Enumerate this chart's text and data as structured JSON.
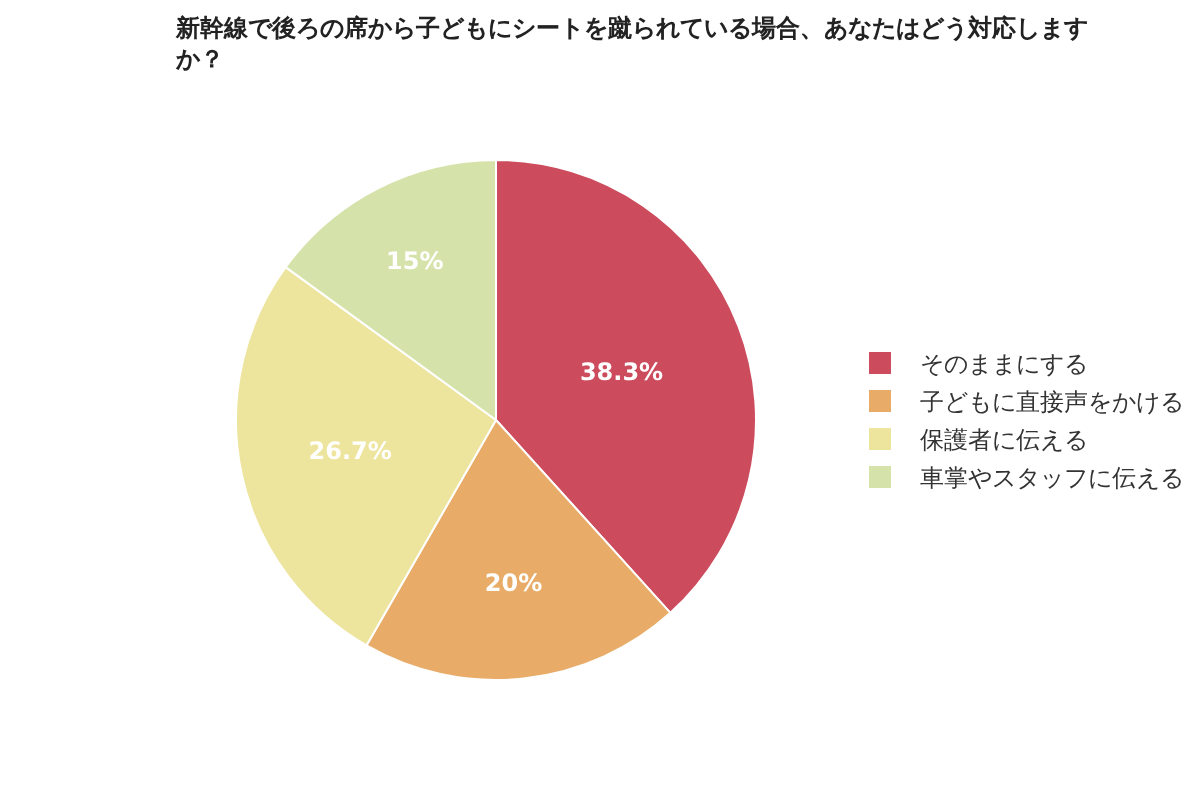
{
  "chart_data": {
    "type": "pie",
    "title": "新幹線で後ろの席から子どもにシートを蹴られている場合、あなたはどう対応しますか？",
    "categories": [
      "そのままにする",
      "子どもに直接声をかける",
      "保護者に伝える",
      "車掌やスタッフに伝える"
    ],
    "values": [
      38.3,
      20,
      26.7,
      15
    ],
    "value_labels": [
      "38.3%",
      "20%",
      "26.7%",
      "15%"
    ],
    "colors": [
      "#cc4b5c",
      "#e8ac68",
      "#ede49d",
      "#d5e3ab"
    ],
    "legend": "right"
  }
}
